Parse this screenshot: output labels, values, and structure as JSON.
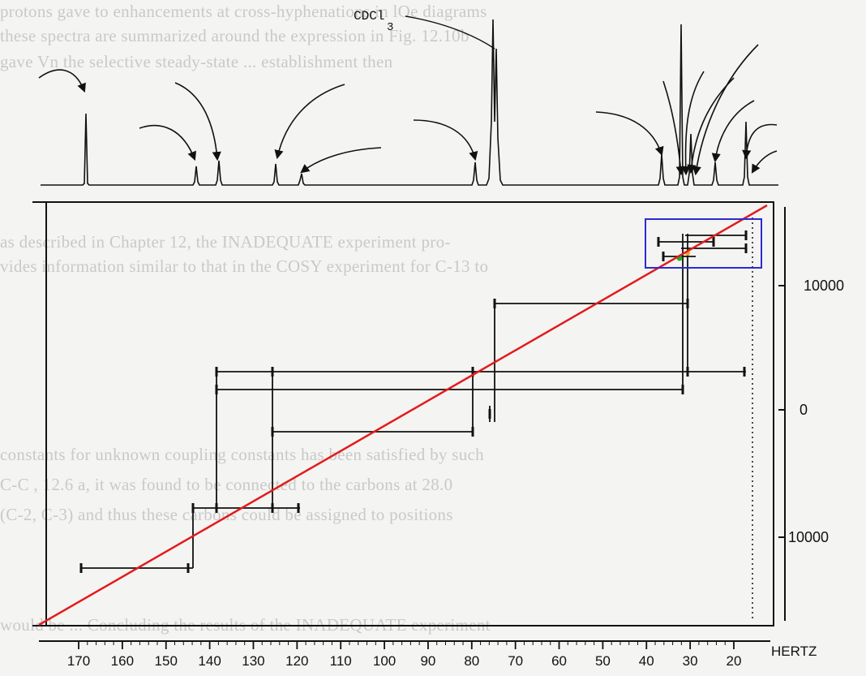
{
  "solvent_label": "CDCl",
  "solvent_subscript": "3",
  "axis_unit": "HERTZ",
  "x_ticks": [
    "170",
    "160",
    "150",
    "140",
    "130",
    "120",
    "110",
    "100",
    "90",
    "80",
    "70",
    "60",
    "50",
    "40",
    "30",
    "20"
  ],
  "right_ticks": [
    "10000",
    "0",
    "10000"
  ],
  "background_text": {
    "line1": "protons gave       to enhancements at cross-hyphenations in lOe diagrams",
    "line2": "these    spectra are summarized       around the expression in Fig. 12.10b",
    "line3": "gave Vn    the selective steady-state     ...  establishment     then",
    "line4": "as described in Chapter 12, the INADEQUATE experiment pro-",
    "line5": "vides information similar to that in the COSY experiment for C-13 to",
    "line6": "constants for unknown coupling constants has been satisfied by such",
    "line7": "C-C   , 12.6 a, it was found to be connected to the carbons at 28.0",
    "line8": "(C-2, C-3) and thus these carbons could be assigned to positions",
    "line9": "would be ...  Concluding the results of the INADEQUATE experiment"
  },
  "colors": {
    "diagonal": "#e31b1b",
    "highlight_box": "#2b2bd6",
    "ink": "#111111",
    "marker_green": "#22aa22",
    "marker_orange": "#f0a020"
  }
}
